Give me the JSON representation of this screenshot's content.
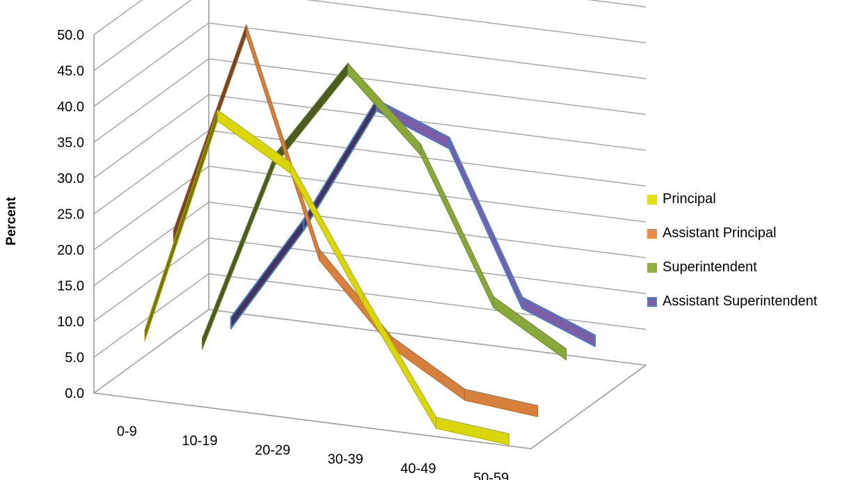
{
  "chart_data": {
    "type": "line",
    "subtype": "3d-line",
    "title": "",
    "xlabel": "",
    "ylabel": "Percent",
    "ylim": [
      0,
      50
    ],
    "yticks": [
      "0.0",
      "5.0",
      "10.0",
      "15.0",
      "20.0",
      "25.0",
      "30.0",
      "35.0",
      "40.0",
      "45.0",
      "50.0"
    ],
    "categories": [
      "0-9",
      "10-19",
      "20-29",
      "30-39",
      "40-49",
      "50-59"
    ],
    "grid": true,
    "legend_position": "right",
    "series": [
      {
        "name": "Principal",
        "color": "#d9d60c",
        "values": [
          8,
          40,
          34,
          17,
          1,
          0
        ]
      },
      {
        "name": "Assistant Principal",
        "color": "#d6803c",
        "values": [
          19,
          49,
          19,
          8,
          2,
          1
        ]
      },
      {
        "name": "Superintendent",
        "color": "#8aa83a",
        "values": [
          1,
          28,
          42,
          32,
          12,
          6
        ]
      },
      {
        "name": "Assistant Superintendent",
        "color": "#7a5fa6",
        "edge": "#4a79c9",
        "values": [
          1,
          16,
          34,
          30,
          9,
          5
        ]
      }
    ]
  }
}
